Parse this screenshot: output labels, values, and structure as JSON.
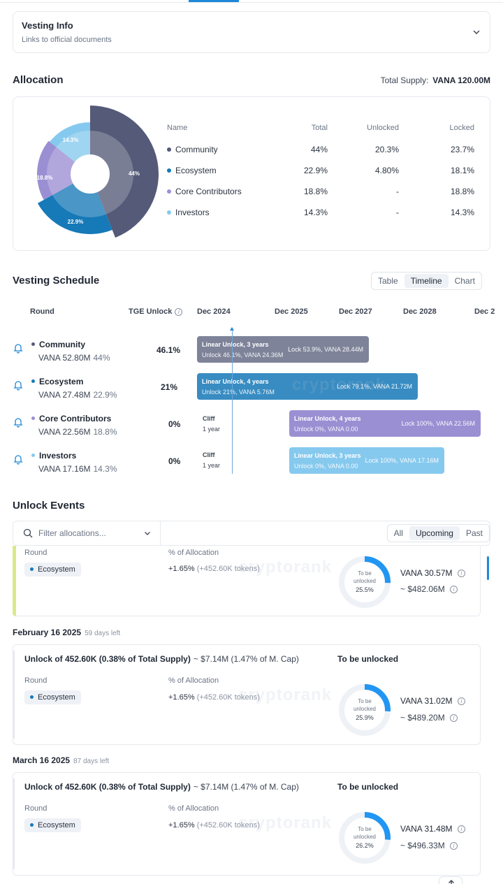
{
  "vesting_info": {
    "title": "Vesting Info",
    "subtitle": "Links to official documents"
  },
  "allocation": {
    "title": "Allocation",
    "supply_label": "Total Supply:",
    "supply_value": "VANA 120.00M",
    "columns": [
      "Name",
      "Total",
      "Unlocked",
      "Locked"
    ],
    "rows": [
      {
        "name": "Community",
        "total": "44%",
        "unlocked": "20.3%",
        "locked": "23.7%",
        "color": "#545a78"
      },
      {
        "name": "Ecosystem",
        "total": "22.9%",
        "unlocked": "4.80%",
        "locked": "18.1%",
        "color": "#1679b8"
      },
      {
        "name": "Core Contributors",
        "total": "18.8%",
        "unlocked": "-",
        "locked": "18.8%",
        "color": "#9b8fd3"
      },
      {
        "name": "Investors",
        "total": "14.3%",
        "unlocked": "-",
        "locked": "14.3%",
        "color": "#86c9ee"
      }
    ],
    "pie_labels": [
      "44%",
      "22.9%",
      "18.8%",
      "14.3%"
    ]
  },
  "vesting_schedule": {
    "title": "Vesting Schedule",
    "views": [
      "Table",
      "Timeline",
      "Chart"
    ],
    "active_view": "Timeline",
    "head_round": "Round",
    "head_tge": "TGE Unlock",
    "dates": [
      "Dec 2024",
      "Dec 2025",
      "Dec 2027",
      "Dec 2028",
      "Dec 2"
    ],
    "rounds": [
      {
        "name": "Community",
        "amount": "VANA 52.80M",
        "pct": "44%",
        "tge": "46.1%",
        "bar_title": "Linear Unlock, 3 years",
        "bar_unlock": "Unlock 46.1%, VANA 24.36M",
        "bar_lock": "Lock 53.9%, VANA 28.44M"
      },
      {
        "name": "Ecosystem",
        "amount": "VANA 27.48M",
        "pct": "22.9%",
        "tge": "21%",
        "bar_title": "Linear Unlock, 4 years",
        "bar_unlock": "Unlock 21%, VANA 5.76M",
        "bar_lock": "Lock 79.1%, VANA 21.72M"
      },
      {
        "name": "Core Contributors",
        "amount": "VANA 22.56M",
        "pct": "18.8%",
        "tge": "0%",
        "cliff": "Cliff",
        "cliff_len": "1 year",
        "bar_title": "Linear Unlock, 4 years",
        "bar_unlock": "Unlock 0%, VANA 0.00",
        "bar_lock": "Lock 100%, VANA 22.56M"
      },
      {
        "name": "Investors",
        "amount": "VANA 17.16M",
        "pct": "14.3%",
        "tge": "0%",
        "cliff": "Cliff",
        "cliff_len": "1 year",
        "bar_title": "Linear Unlock, 3 years",
        "bar_unlock": "Unlock 0%, VANA 0.00",
        "bar_lock": "Lock 100%, VANA 17.16M"
      }
    ],
    "watermark": "cryptorank"
  },
  "unlock_events": {
    "title": "Unlock Events",
    "filter_placeholder": "Filter allocations...",
    "tabs": [
      "All",
      "Upcoming",
      "Past"
    ],
    "active_tab": "Upcoming",
    "round_label": "Round",
    "alloc_label": "% of Allocation",
    "to_be_unlocked": "To be unlocked",
    "ring_label_1": "To be",
    "ring_label_2": "unlocked",
    "events": [
      {
        "round": "Ecosystem",
        "alloc_pct": "+1.65%",
        "alloc_tokens": "(+452.60K tokens)",
        "ring_pct": "25.5%",
        "ring_fraction": 0.255,
        "amount": "VANA 30.57M",
        "usd": "~ $482.06M"
      },
      {
        "date": "February 16 2025",
        "days_left": "59 days left",
        "title": "Unlock of 452.60K (0.38% of Total Supply)",
        "title_usd": "~ $7.14M (1.47% of M. Cap)",
        "round": "Ecosystem",
        "alloc_pct": "+1.65%",
        "alloc_tokens": "(+452.60K tokens)",
        "ring_pct": "25.9%",
        "ring_fraction": 0.259,
        "amount": "VANA 31.02M",
        "usd": "~ $489.20M"
      },
      {
        "date": "March 16 2025",
        "days_left": "87 days left",
        "title": "Unlock of 452.60K (0.38% of Total Supply)",
        "title_usd": "~ $7.14M (1.47% of M. Cap)",
        "round": "Ecosystem",
        "alloc_pct": "+1.65%",
        "alloc_tokens": "(+452.60K tokens)",
        "ring_pct": "26.2%",
        "ring_fraction": 0.262,
        "amount": "VANA 31.48M",
        "usd": "~ $496.33M"
      }
    ]
  },
  "icons": {
    "chevron": "chevron-down-icon",
    "bell": "bell-icon",
    "search": "search-icon",
    "info": "info-icon",
    "up": "arrow-up-icon"
  }
}
